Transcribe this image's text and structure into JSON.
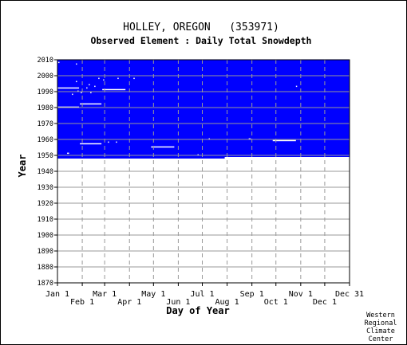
{
  "chart_data": {
    "type": "heatmap",
    "title": "HOLLEY, OREGON   (353971)",
    "subtitle": "Observed Element : Daily Total Snowdepth",
    "xlabel": "Day of Year",
    "ylabel": "Year",
    "xlim": [
      1,
      366
    ],
    "ylim": [
      1870,
      2010
    ],
    "x_ticks_upper": [
      {
        "label": "Jan 1",
        "day": 1
      },
      {
        "label": "Mar 1",
        "day": 60
      },
      {
        "label": "May 1",
        "day": 121
      },
      {
        "label": "Jul 1",
        "day": 182
      },
      {
        "label": "Sep 1",
        "day": 244
      },
      {
        "label": "Nov 1",
        "day": 305
      },
      {
        "label": "Dec 31",
        "day": 366
      }
    ],
    "x_ticks_lower": [
      {
        "label": "Feb 1",
        "day": 32
      },
      {
        "label": "Apr 1",
        "day": 91
      },
      {
        "label": "Jun 1",
        "day": 152
      },
      {
        "label": "Aug 1",
        "day": 213
      },
      {
        "label": "Oct 1",
        "day": 274
      },
      {
        "label": "Dec 1",
        "day": 335
      }
    ],
    "y_ticks": [
      1870,
      1880,
      1890,
      1900,
      1910,
      1920,
      1930,
      1940,
      1950,
      1960,
      1970,
      1980,
      1990,
      2000,
      2010
    ],
    "grid": true,
    "record_period": {
      "start_year": 1948,
      "end_year": 2010,
      "partial_first_year_end_day": 210,
      "color": "#0000ff"
    },
    "missing_gaps": [
      {
        "year": 1992,
        "start_day": 1,
        "end_day": 28
      },
      {
        "year": 1980,
        "start_day": 1,
        "end_day": 28
      },
      {
        "year": 1982,
        "start_day": 29,
        "end_day": 56
      },
      {
        "year": 1991,
        "start_day": 57,
        "end_day": 86
      },
      {
        "year": 1957,
        "start_day": 29,
        "end_day": 56
      },
      {
        "year": 1955,
        "start_day": 118,
        "end_day": 147
      },
      {
        "year": 1959,
        "start_day": 270,
        "end_day": 299
      }
    ],
    "missing_days": [
      {
        "year": 2008,
        "day": 2
      },
      {
        "year": 2007,
        "day": 24
      },
      {
        "year": 1996,
        "day": 24
      },
      {
        "year": 1994,
        "day": 40
      },
      {
        "year": 1993,
        "day": 47
      },
      {
        "year": 1992,
        "day": 37
      },
      {
        "year": 1990,
        "day": 26
      },
      {
        "year": 1989,
        "day": 30
      },
      {
        "year": 1989,
        "day": 42
      },
      {
        "year": 1988,
        "day": 19
      },
      {
        "year": 1998,
        "day": 52
      },
      {
        "year": 1997,
        "day": 58
      },
      {
        "year": 1998,
        "day": 76
      },
      {
        "year": 1998,
        "day": 96
      },
      {
        "year": 1993,
        "day": 299
      },
      {
        "year": 1951,
        "day": 13
      },
      {
        "year": 1951,
        "day": 14
      },
      {
        "year": 1958,
        "day": 64
      },
      {
        "year": 1958,
        "day": 74
      },
      {
        "year": 1960,
        "day": 190
      },
      {
        "year": 1960,
        "day": 240
      },
      {
        "year": 1960,
        "day": 241
      },
      {
        "year": 1950,
        "day": 176
      }
    ]
  },
  "footer": {
    "lines": [
      "Western",
      "Regional",
      "Climate",
      "Center"
    ]
  }
}
